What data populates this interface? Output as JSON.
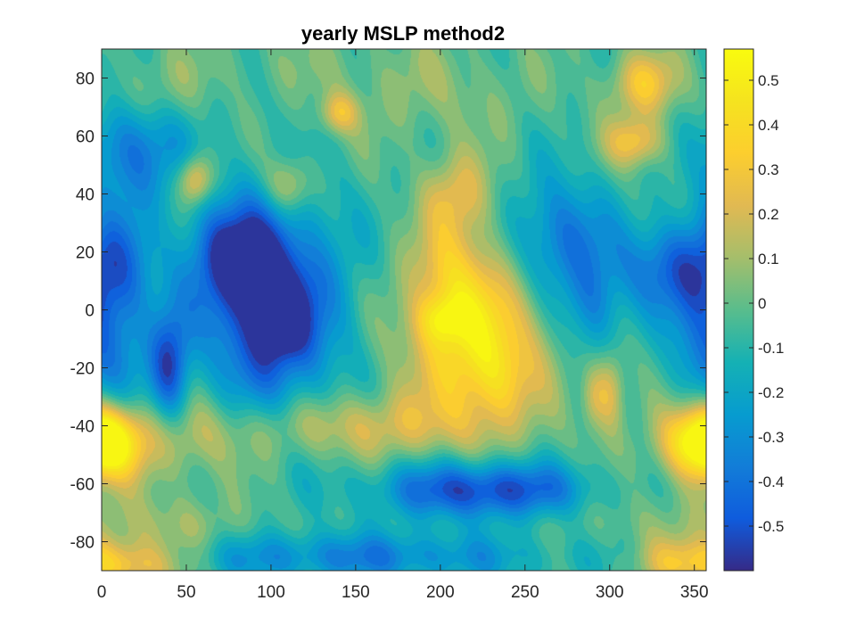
{
  "chart_data": {
    "type": "heatmap",
    "subtype": "filled-contour",
    "title": "yearly MSLP method2",
    "xlabel": "",
    "ylabel": "",
    "xlim": [
      0,
      357
    ],
    "ylim": [
      -90,
      90
    ],
    "x_ticks": [
      0,
      50,
      100,
      150,
      200,
      250,
      300,
      350
    ],
    "x_tick_labels": [
      "0",
      "50",
      "100",
      "150",
      "200",
      "250",
      "300",
      "350"
    ],
    "y_ticks": [
      80,
      60,
      40,
      20,
      0,
      -20,
      -40,
      -60,
      -80
    ],
    "y_tick_labels": [
      "80",
      "60",
      "40",
      "20",
      "0",
      "-20",
      "-40",
      "-60",
      "-80"
    ],
    "colorbar": {
      "colormap": "parula",
      "clim": [
        -0.6,
        0.57
      ],
      "ticks": [
        0.5,
        0.4,
        0.3,
        0.2,
        0.1,
        0,
        -0.1,
        -0.2,
        -0.3,
        -0.4,
        -0.5
      ],
      "tick_labels": [
        "0.5",
        "0.4",
        "0.3",
        "0.2",
        "0.1",
        "0",
        "-0.1",
        "-0.2",
        "-0.3",
        "-0.4",
        "-0.5"
      ]
    },
    "background_value": -0.05,
    "features": [
      {
        "x": 220,
        "y": -10,
        "value": 0.5,
        "sx": 28,
        "sy": 20
      },
      {
        "x": 200,
        "y": -3,
        "value": 0.25,
        "sx": 10,
        "sy": 6
      },
      {
        "x": 235,
        "y": -25,
        "value": 0.15,
        "sx": 14,
        "sy": 10
      },
      {
        "x": 210,
        "y": 40,
        "value": 0.28,
        "sx": 14,
        "sy": 10
      },
      {
        "x": 205,
        "y": 15,
        "value": 0.2,
        "sx": 16,
        "sy": 12
      },
      {
        "x": 195,
        "y": 75,
        "value": 0.1,
        "sx": 40,
        "sy": 12
      },
      {
        "x": 350,
        "y": -45,
        "value": 0.5,
        "sx": 15,
        "sy": 9
      },
      {
        "x": 5,
        "y": -45,
        "value": 0.5,
        "sx": 14,
        "sy": 9
      },
      {
        "x": 300,
        "y": -28,
        "value": 0.3,
        "sx": 6,
        "sy": 10
      },
      {
        "x": 290,
        "y": -30,
        "value": 0.2,
        "sx": 5,
        "sy": 8
      },
      {
        "x": 320,
        "y": 78,
        "value": 0.35,
        "sx": 14,
        "sy": 8
      },
      {
        "x": 315,
        "y": 58,
        "value": 0.35,
        "sx": 12,
        "sy": 6
      },
      {
        "x": 55,
        "y": 45,
        "value": 0.4,
        "sx": 7,
        "sy": 6
      },
      {
        "x": 110,
        "y": 43,
        "value": 0.3,
        "sx": 10,
        "sy": 7
      },
      {
        "x": 140,
        "y": 68,
        "value": 0.3,
        "sx": 8,
        "sy": 5
      },
      {
        "x": 45,
        "y": -45,
        "value": 0.2,
        "sx": 30,
        "sy": 10
      },
      {
        "x": 150,
        "y": -40,
        "value": 0.25,
        "sx": 50,
        "sy": 8
      },
      {
        "x": 20,
        "y": -88,
        "value": 0.35,
        "sx": 20,
        "sy": 6
      },
      {
        "x": 345,
        "y": -87,
        "value": 0.3,
        "sx": 20,
        "sy": 6
      },
      {
        "x": 30,
        "y": -75,
        "value": 0.15,
        "sx": 40,
        "sy": 8
      },
      {
        "x": 290,
        "y": -65,
        "value": 0.1,
        "sx": 40,
        "sy": 10
      },
      {
        "x": 100,
        "y": 2,
        "value": -0.6,
        "sx": 28,
        "sy": 25
      },
      {
        "x": 105,
        "y": -5,
        "value": -0.2,
        "sx": 10,
        "sy": 8
      },
      {
        "x": 40,
        "y": -20,
        "value": -0.45,
        "sx": 8,
        "sy": 14
      },
      {
        "x": 75,
        "y": 20,
        "value": -0.35,
        "sx": 18,
        "sy": 12
      },
      {
        "x": 230,
        "y": -62,
        "value": -0.55,
        "sx": 45,
        "sy": 7
      },
      {
        "x": 150,
        "y": -85,
        "value": -0.3,
        "sx": 80,
        "sy": 6
      },
      {
        "x": 20,
        "y": 55,
        "value": -0.35,
        "sx": 20,
        "sy": 12
      },
      {
        "x": 340,
        "y": 15,
        "value": -0.4,
        "sx": 25,
        "sy": 12
      },
      {
        "x": 270,
        "y": 25,
        "value": -0.35,
        "sx": 20,
        "sy": 15
      },
      {
        "x": 290,
        "y": 0,
        "value": -0.25,
        "sx": 12,
        "sy": 12
      },
      {
        "x": 10,
        "y": 0,
        "value": -0.3,
        "sx": 15,
        "sy": 25
      },
      {
        "x": 350,
        "y": -15,
        "value": -0.2,
        "sx": 12,
        "sy": 15
      },
      {
        "x": 100,
        "y": 85,
        "value": 0.05,
        "sx": 60,
        "sy": 8
      },
      {
        "x": 30,
        "y": 75,
        "value": 0.1,
        "sx": 20,
        "sy": 8
      }
    ]
  }
}
